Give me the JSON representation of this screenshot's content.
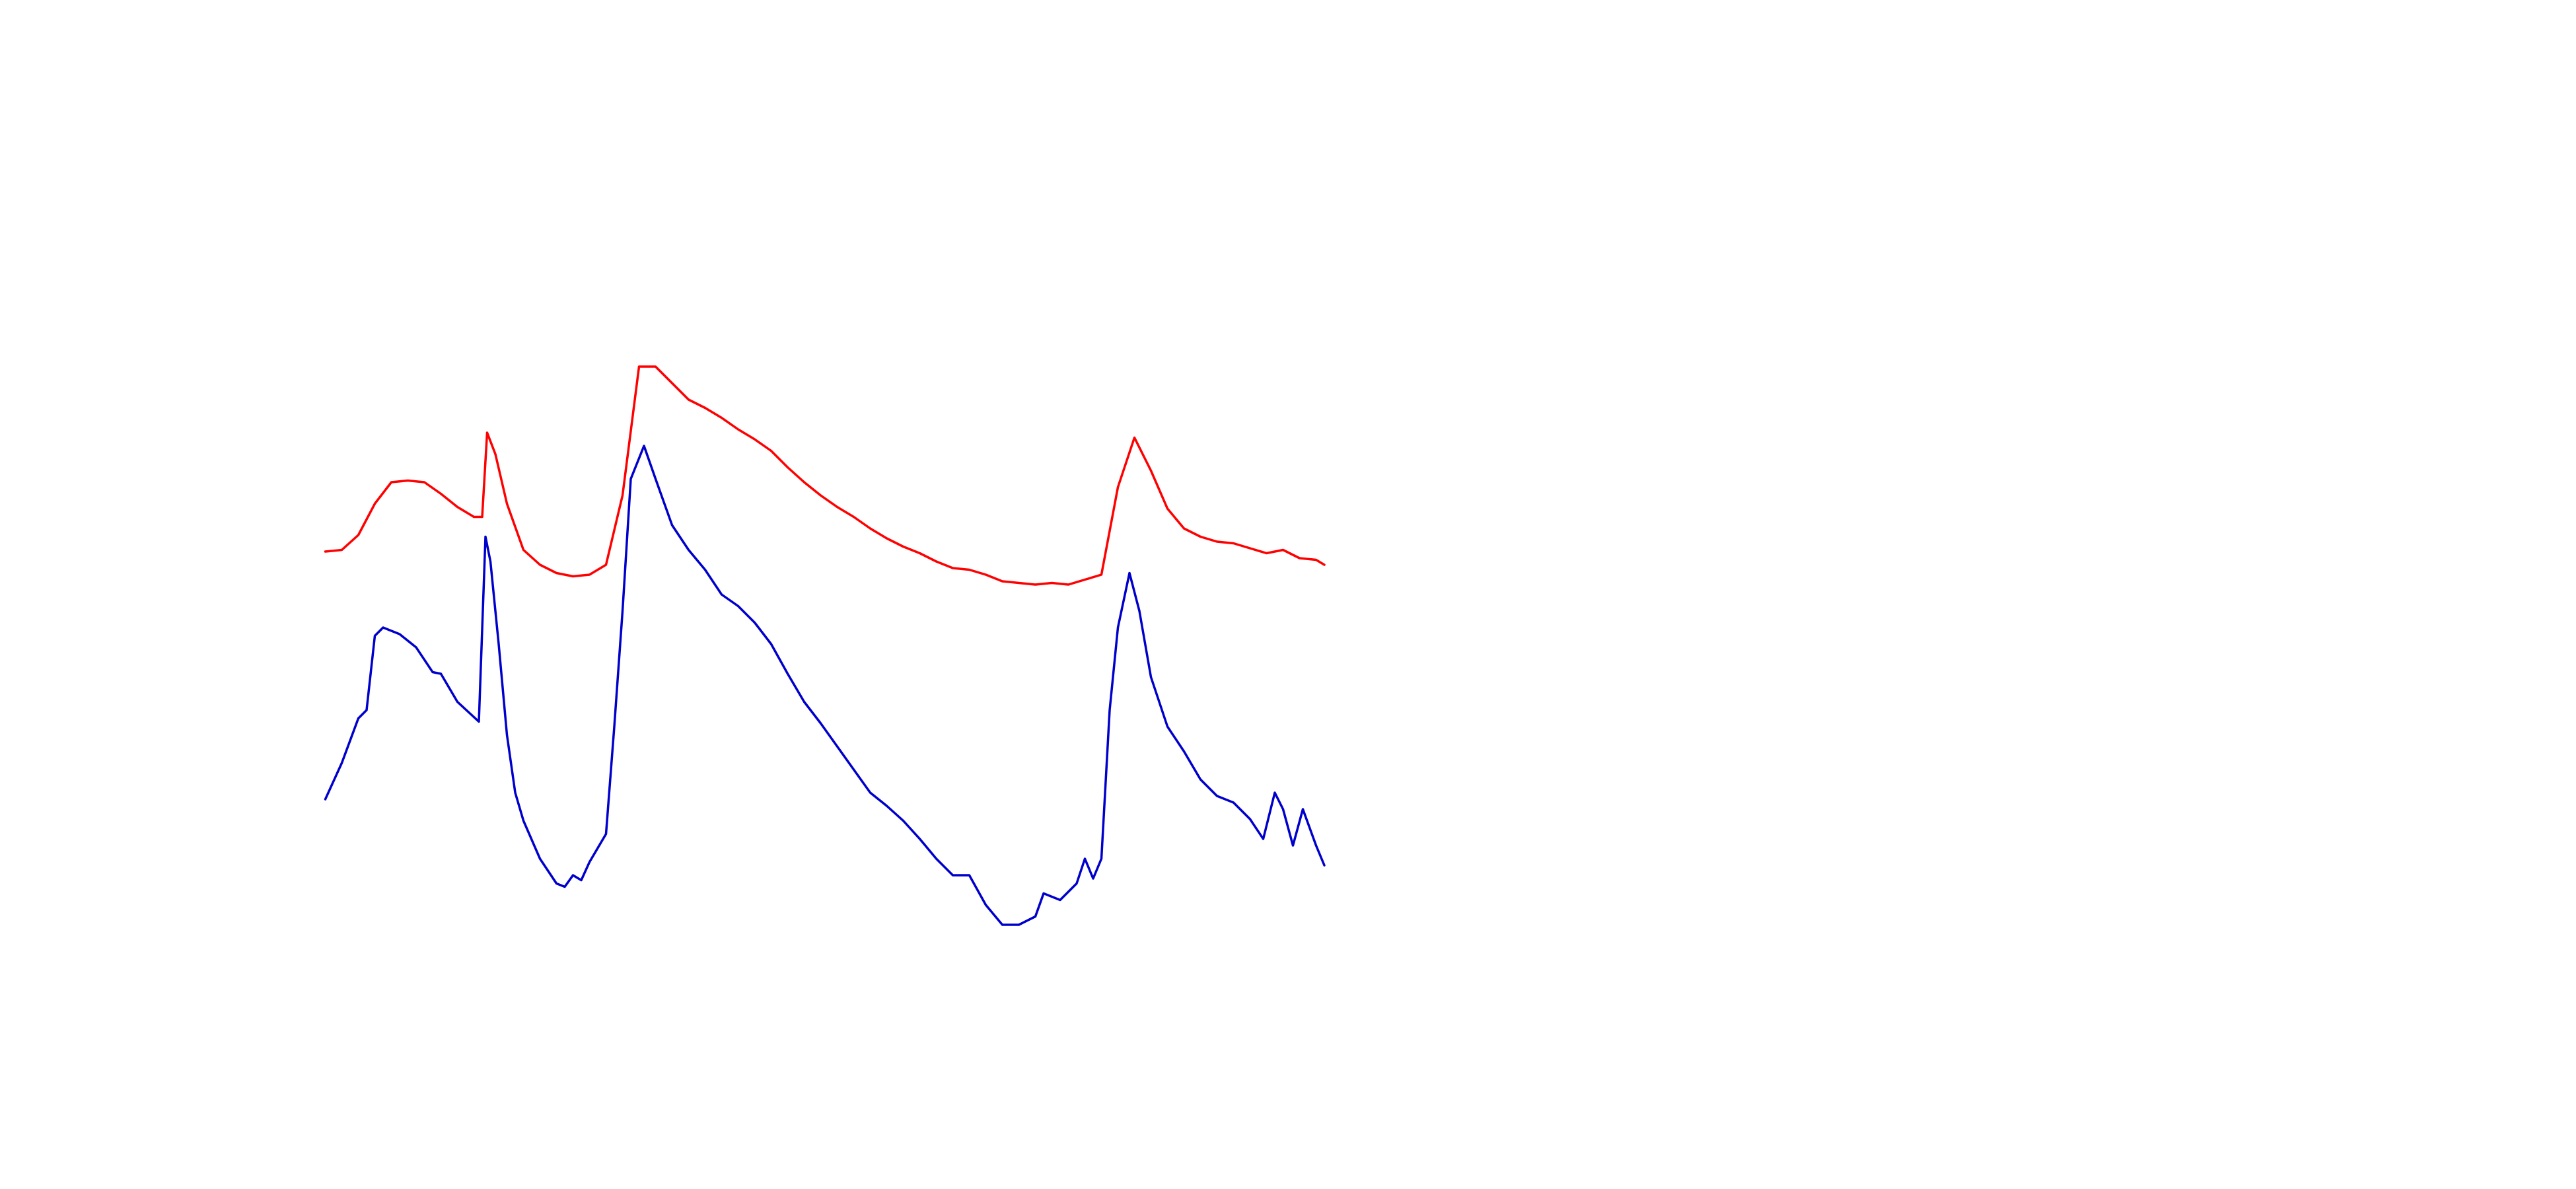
{
  "chart_data": {
    "type": "line",
    "xlim": [
      0,
      605
    ],
    "ylim": [
      0,
      400
    ],
    "series": [
      {
        "color": "#ff0000",
        "x": [
          0,
          10,
          20,
          30,
          40,
          50,
          60,
          70,
          80,
          90,
          95,
          98,
          103,
          110,
          120,
          130,
          140,
          150,
          160,
          170,
          180,
          190,
          200,
          210,
          220,
          230,
          240,
          250,
          260,
          270,
          280,
          290,
          300,
          310,
          320,
          330,
          340,
          350,
          360,
          370,
          380,
          390,
          400,
          410,
          420,
          430,
          440,
          450,
          460,
          470,
          480,
          490,
          500,
          510,
          520,
          530,
          540,
          550,
          560,
          570,
          580,
          590,
          600,
          605
        ],
        "values": [
          266,
          267,
          276,
          295,
          308,
          309,
          308,
          301,
          293,
          287,
          287,
          338,
          325,
          295,
          267,
          258,
          253,
          251,
          252,
          258,
          300,
          378,
          378,
          368,
          358,
          353,
          347,
          340,
          334,
          327,
          317,
          308,
          300,
          293,
          287,
          280,
          274,
          269,
          265,
          260,
          256,
          255,
          252,
          248,
          247,
          246,
          247,
          246,
          249,
          252,
          305,
          335,
          315,
          292,
          280,
          275,
          272,
          271,
          268,
          265,
          267,
          262,
          261,
          258
        ]
      },
      {
        "color": "#0000cc",
        "x": [
          0,
          10,
          20,
          25,
          30,
          35,
          45,
          55,
          65,
          70,
          80,
          93,
          97,
          100,
          105,
          110,
          115,
          120,
          130,
          140,
          145,
          150,
          155,
          160,
          170,
          175,
          180,
          185,
          193,
          200,
          210,
          220,
          230,
          240,
          250,
          260,
          270,
          280,
          290,
          300,
          310,
          320,
          330,
          340,
          350,
          360,
          370,
          380,
          390,
          400,
          410,
          420,
          430,
          435,
          445,
          455,
          460,
          465,
          470,
          475,
          480,
          487,
          493,
          500,
          510,
          520,
          530,
          540,
          550,
          560,
          568,
          575,
          580,
          586,
          592,
          600,
          605
        ],
        "values": [
          116,
          138,
          165,
          170,
          215,
          220,
          216,
          208,
          193,
          192,
          175,
          163,
          275,
          260,
          210,
          155,
          120,
          103,
          80,
          65,
          63,
          70,
          67,
          78,
          95,
          160,
          230,
          310,
          330,
          310,
          282,
          267,
          255,
          240,
          233,
          223,
          210,
          192,
          175,
          162,
          148,
          134,
          120,
          112,
          103,
          92,
          80,
          70,
          70,
          52,
          40,
          40,
          45,
          59,
          55,
          65,
          80,
          68,
          80,
          170,
          220,
          253,
          230,
          190,
          160,
          145,
          128,
          118,
          114,
          104,
          92,
          120,
          110,
          88,
          110,
          88,
          76
        ]
      }
    ]
  }
}
